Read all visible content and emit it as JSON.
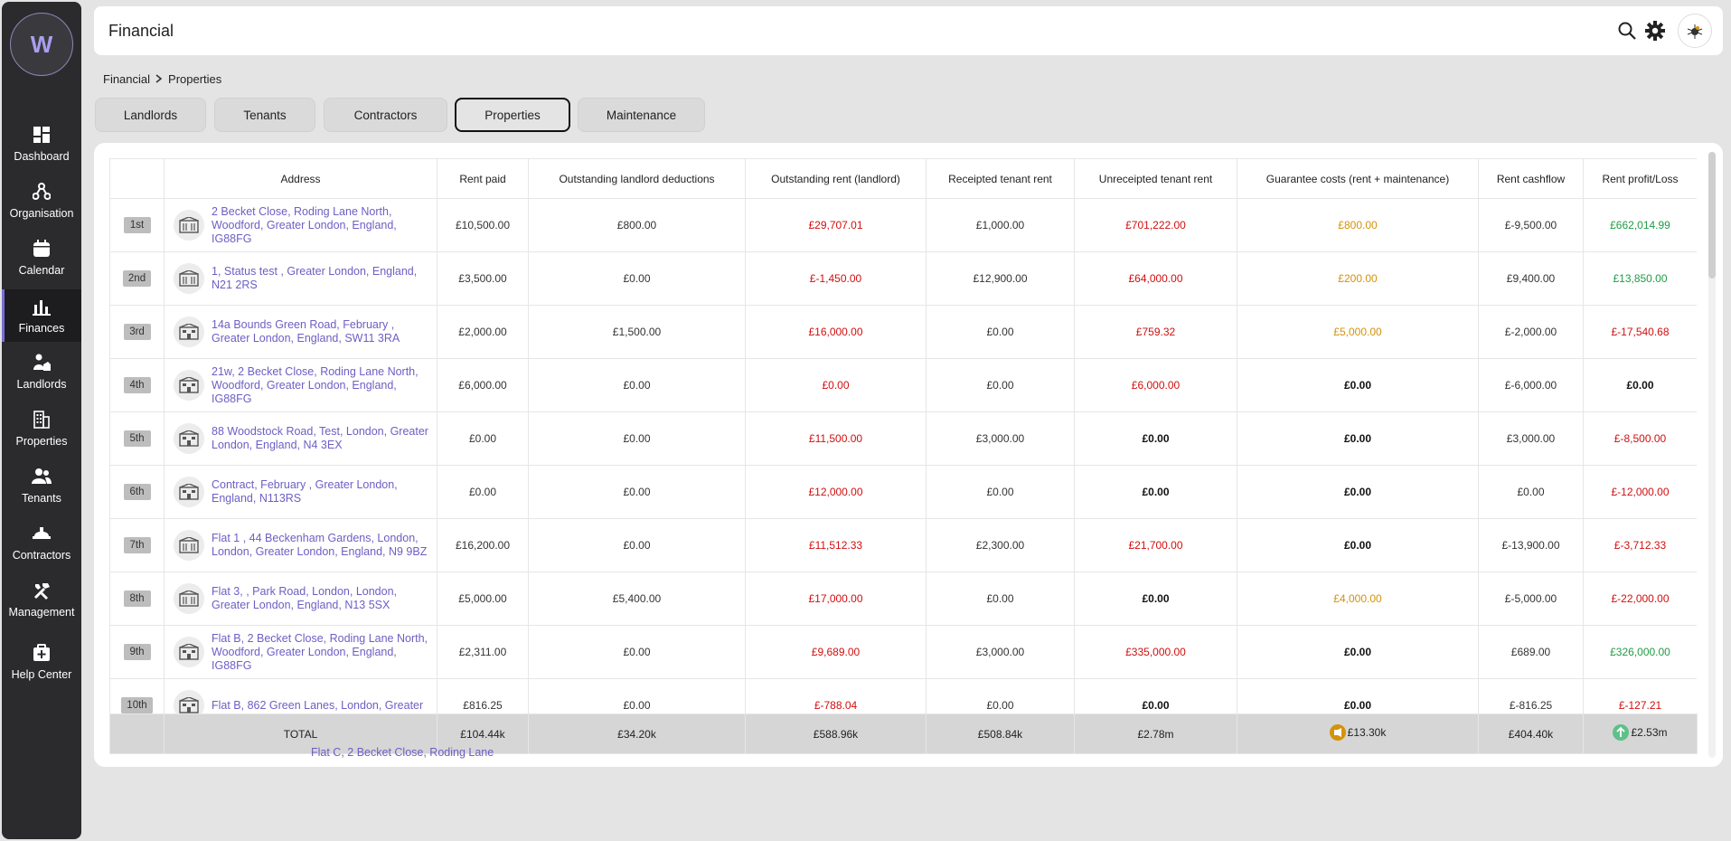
{
  "app": {
    "logo_letter": "W"
  },
  "sidebar": {
    "items": [
      {
        "label": "Dashboard",
        "icon": "dashboard-icon"
      },
      {
        "label": "Organisation",
        "icon": "organisation-icon"
      },
      {
        "label": "Calendar",
        "icon": "calendar-icon"
      },
      {
        "label": "Finances",
        "icon": "finances-icon",
        "active": true
      },
      {
        "label": "Landlords",
        "icon": "landlords-icon"
      },
      {
        "label": "Properties",
        "icon": "properties-icon"
      },
      {
        "label": "Tenants",
        "icon": "tenants-icon"
      },
      {
        "label": "Contractors",
        "icon": "contractors-icon"
      },
      {
        "label": "Management",
        "icon": "management-icon"
      },
      {
        "label": "Help Center",
        "icon": "help-center-icon"
      }
    ]
  },
  "header": {
    "title": "Financial"
  },
  "breadcrumb": {
    "root": "Financial",
    "current": "Properties"
  },
  "tabs": [
    {
      "label": "Landlords"
    },
    {
      "label": "Tenants"
    },
    {
      "label": "Contractors"
    },
    {
      "label": "Properties",
      "active": true
    },
    {
      "label": "Maintenance"
    }
  ],
  "table": {
    "headers": [
      "",
      "Address",
      "Rent paid",
      "Outstanding landlord deductions",
      "Outstanding rent (landlord)",
      "Receipted tenant rent",
      "Unreceipted tenant rent",
      "Guarantee costs (rent + maintenance)",
      "Rent cashflow",
      "Rent profit/Loss"
    ],
    "rows": [
      {
        "rank": "1st",
        "address": "2 Becket Close, Roding Lane North, Woodford, Greater London, England, IG88FG",
        "rent_paid": "£10,500.00",
        "ll_deductions": "£800.00",
        "outstanding_rent": "£29,707.01",
        "receipted": "£1,000.00",
        "unreceipted": "£701,222.00",
        "guarantee": "£800.00",
        "cashflow": "£-9,500.00",
        "profit": "£662,014.99"
      },
      {
        "rank": "2nd",
        "address": "1, Status test , Greater London, England, N21 2RS",
        "rent_paid": "£3,500.00",
        "ll_deductions": "£0.00",
        "outstanding_rent": "£-1,450.00",
        "receipted": "£12,900.00",
        "unreceipted": "£64,000.00",
        "guarantee": "£200.00",
        "cashflow": "£9,400.00",
        "profit": "£13,850.00"
      },
      {
        "rank": "3rd",
        "address": "14a Bounds Green Road, February , Greater London, England, SW11 3RA",
        "rent_paid": "£2,000.00",
        "ll_deductions": "£1,500.00",
        "outstanding_rent": "£16,000.00",
        "receipted": "£0.00",
        "unreceipted": "£759.32",
        "guarantee": "£5,000.00",
        "cashflow": "£-2,000.00",
        "profit": "£-17,540.68"
      },
      {
        "rank": "4th",
        "address": "21w, 2 Becket Close, Roding Lane North, Woodford, Greater London, England, IG88FG",
        "rent_paid": "£6,000.00",
        "ll_deductions": "£0.00",
        "outstanding_rent": "£0.00",
        "receipted": "£0.00",
        "unreceipted": "£6,000.00",
        "guarantee": "£0.00",
        "cashflow": "£-6,000.00",
        "profit": "£0.00"
      },
      {
        "rank": "5th",
        "address": "88 Woodstock Road, Test, London, Greater London, England, N4 3EX",
        "rent_paid": "£0.00",
        "ll_deductions": "£0.00",
        "outstanding_rent": "£11,500.00",
        "receipted": "£3,000.00",
        "unreceipted": "£0.00",
        "guarantee": "£0.00",
        "cashflow": "£3,000.00",
        "profit": "£-8,500.00"
      },
      {
        "rank": "6th",
        "address": "Contract, February , Greater London, England, N113RS",
        "rent_paid": "£0.00",
        "ll_deductions": "£0.00",
        "outstanding_rent": "£12,000.00",
        "receipted": "£0.00",
        "unreceipted": "£0.00",
        "guarantee": "£0.00",
        "cashflow": "£0.00",
        "profit": "£-12,000.00"
      },
      {
        "rank": "7th",
        "address": "Flat 1 , 44 Beckenham Gardens, London, London, Greater London, England, N9 9BZ",
        "rent_paid": "£16,200.00",
        "ll_deductions": "£0.00",
        "outstanding_rent": "£11,512.33",
        "receipted": "£2,300.00",
        "unreceipted": "£21,700.00",
        "guarantee": "£0.00",
        "cashflow": "£-13,900.00",
        "profit": "£-3,712.33"
      },
      {
        "rank": "8th",
        "address": "Flat 3, , Park Road, London, London, Greater London, England, N13 5SX",
        "rent_paid": "£5,000.00",
        "ll_deductions": "£5,400.00",
        "outstanding_rent": "£17,000.00",
        "receipted": "£0.00",
        "unreceipted": "£0.00",
        "guarantee": "£4,000.00",
        "cashflow": "£-5,000.00",
        "profit": "£-22,000.00"
      },
      {
        "rank": "9th",
        "address": "Flat B, 2 Becket Close, Roding Lane North, Woodford, Greater London, England, IG88FG",
        "rent_paid": "£2,311.00",
        "ll_deductions": "£0.00",
        "outstanding_rent": "£9,689.00",
        "receipted": "£3,000.00",
        "unreceipted": "£335,000.00",
        "guarantee": "£0.00",
        "cashflow": "£689.00",
        "profit": "£326,000.00"
      },
      {
        "rank": "10th",
        "address": "Flat B, 862 Green Lanes, London, Greater",
        "rent_paid": "£816.25",
        "ll_deductions": "£0.00",
        "outstanding_rent": "£-788.04",
        "receipted": "£0.00",
        "unreceipted": "£0.00",
        "guarantee": "£0.00",
        "cashflow": "£-816.25",
        "profit": "£-127.21"
      }
    ],
    "partial_row_address": "Flat C, 2 Becket Close, Roding Lane",
    "total": {
      "label": "TOTAL",
      "rent_paid": "£104.44k",
      "ll_deductions": "£34.20k",
      "outstanding_rent": "£588.96k",
      "receipted": "£508.84k",
      "unreceipted": "£2.78m",
      "guarantee": "£13.30k",
      "cashflow": "£404.40k",
      "profit": "£2.53m"
    }
  },
  "colors": {
    "accent": "#6c5fc4",
    "negative": "#d10f0f",
    "warning": "#d4920a",
    "positive": "#1f9c46",
    "sidebar_bg": "#2b2b2d"
  }
}
